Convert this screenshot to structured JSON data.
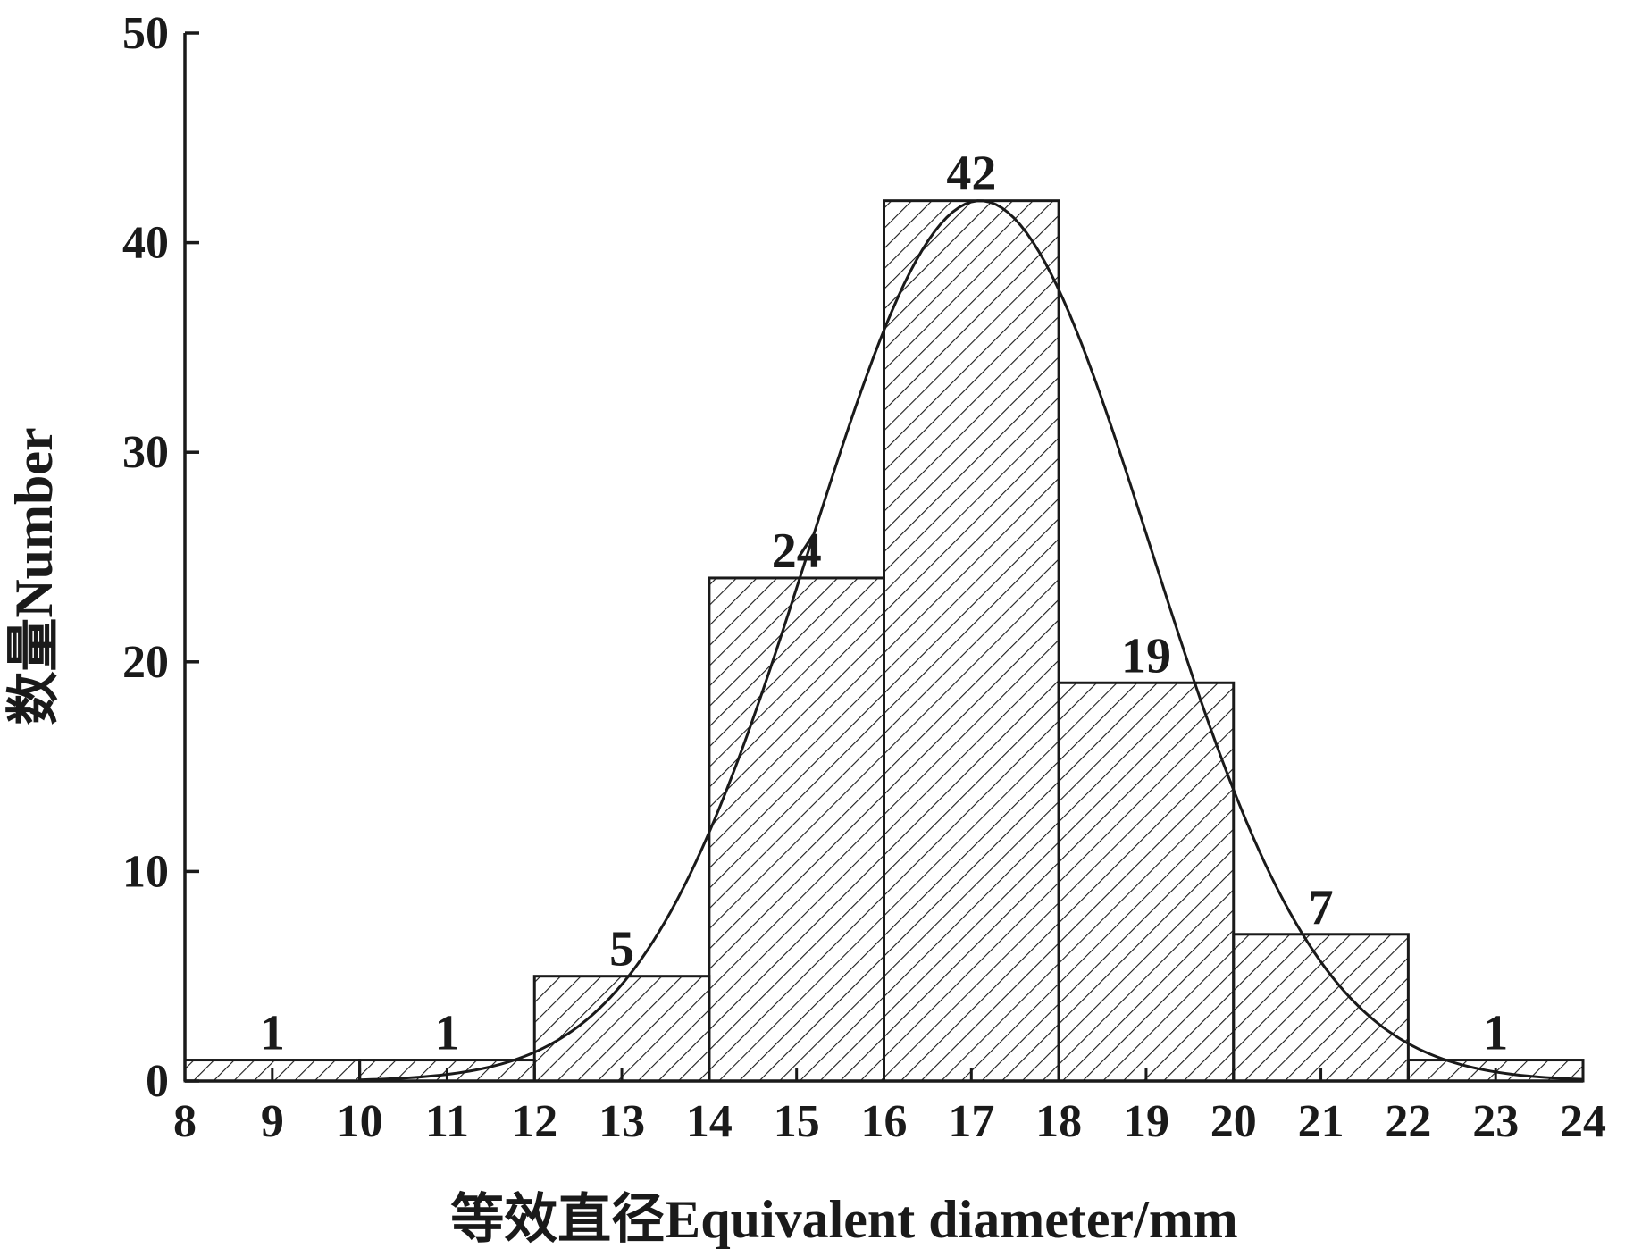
{
  "chart_data": {
    "type": "bar",
    "title": "",
    "xlabel": "等效直径Equivalent diameter/mm",
    "ylabel": "数量Number",
    "xlim": [
      8,
      24
    ],
    "ylim": [
      0,
      50
    ],
    "x_ticks": [
      "8",
      "9",
      "10",
      "11",
      "12",
      "13",
      "14",
      "15",
      "16",
      "17",
      "18",
      "19",
      "20",
      "21",
      "22",
      "23",
      "24"
    ],
    "y_ticks": [
      "0",
      "10",
      "20",
      "30",
      "40",
      "50"
    ],
    "bins": [
      {
        "from": 8,
        "to": 10,
        "value": 1,
        "label": "1"
      },
      {
        "from": 10,
        "to": 12,
        "value": 1,
        "label": "1"
      },
      {
        "from": 12,
        "to": 14,
        "value": 5,
        "label": "5"
      },
      {
        "from": 14,
        "to": 16,
        "value": 24,
        "label": "24"
      },
      {
        "from": 16,
        "to": 18,
        "value": 42,
        "label": "42"
      },
      {
        "from": 18,
        "to": 20,
        "value": 19,
        "label": "19"
      },
      {
        "from": 20,
        "to": 22,
        "value": 7,
        "label": "7"
      },
      {
        "from": 22,
        "to": 24,
        "value": 1,
        "label": "1"
      }
    ],
    "fit_curve": {
      "type": "normal",
      "mean": 17.1,
      "sd": 1.95,
      "peak": 42,
      "x_range": [
        10,
        24
      ]
    },
    "bar_fill": "diagonal-hatch",
    "grid": false,
    "colors": {
      "ink": "#1a1a1a",
      "background": "#ffffff"
    }
  }
}
